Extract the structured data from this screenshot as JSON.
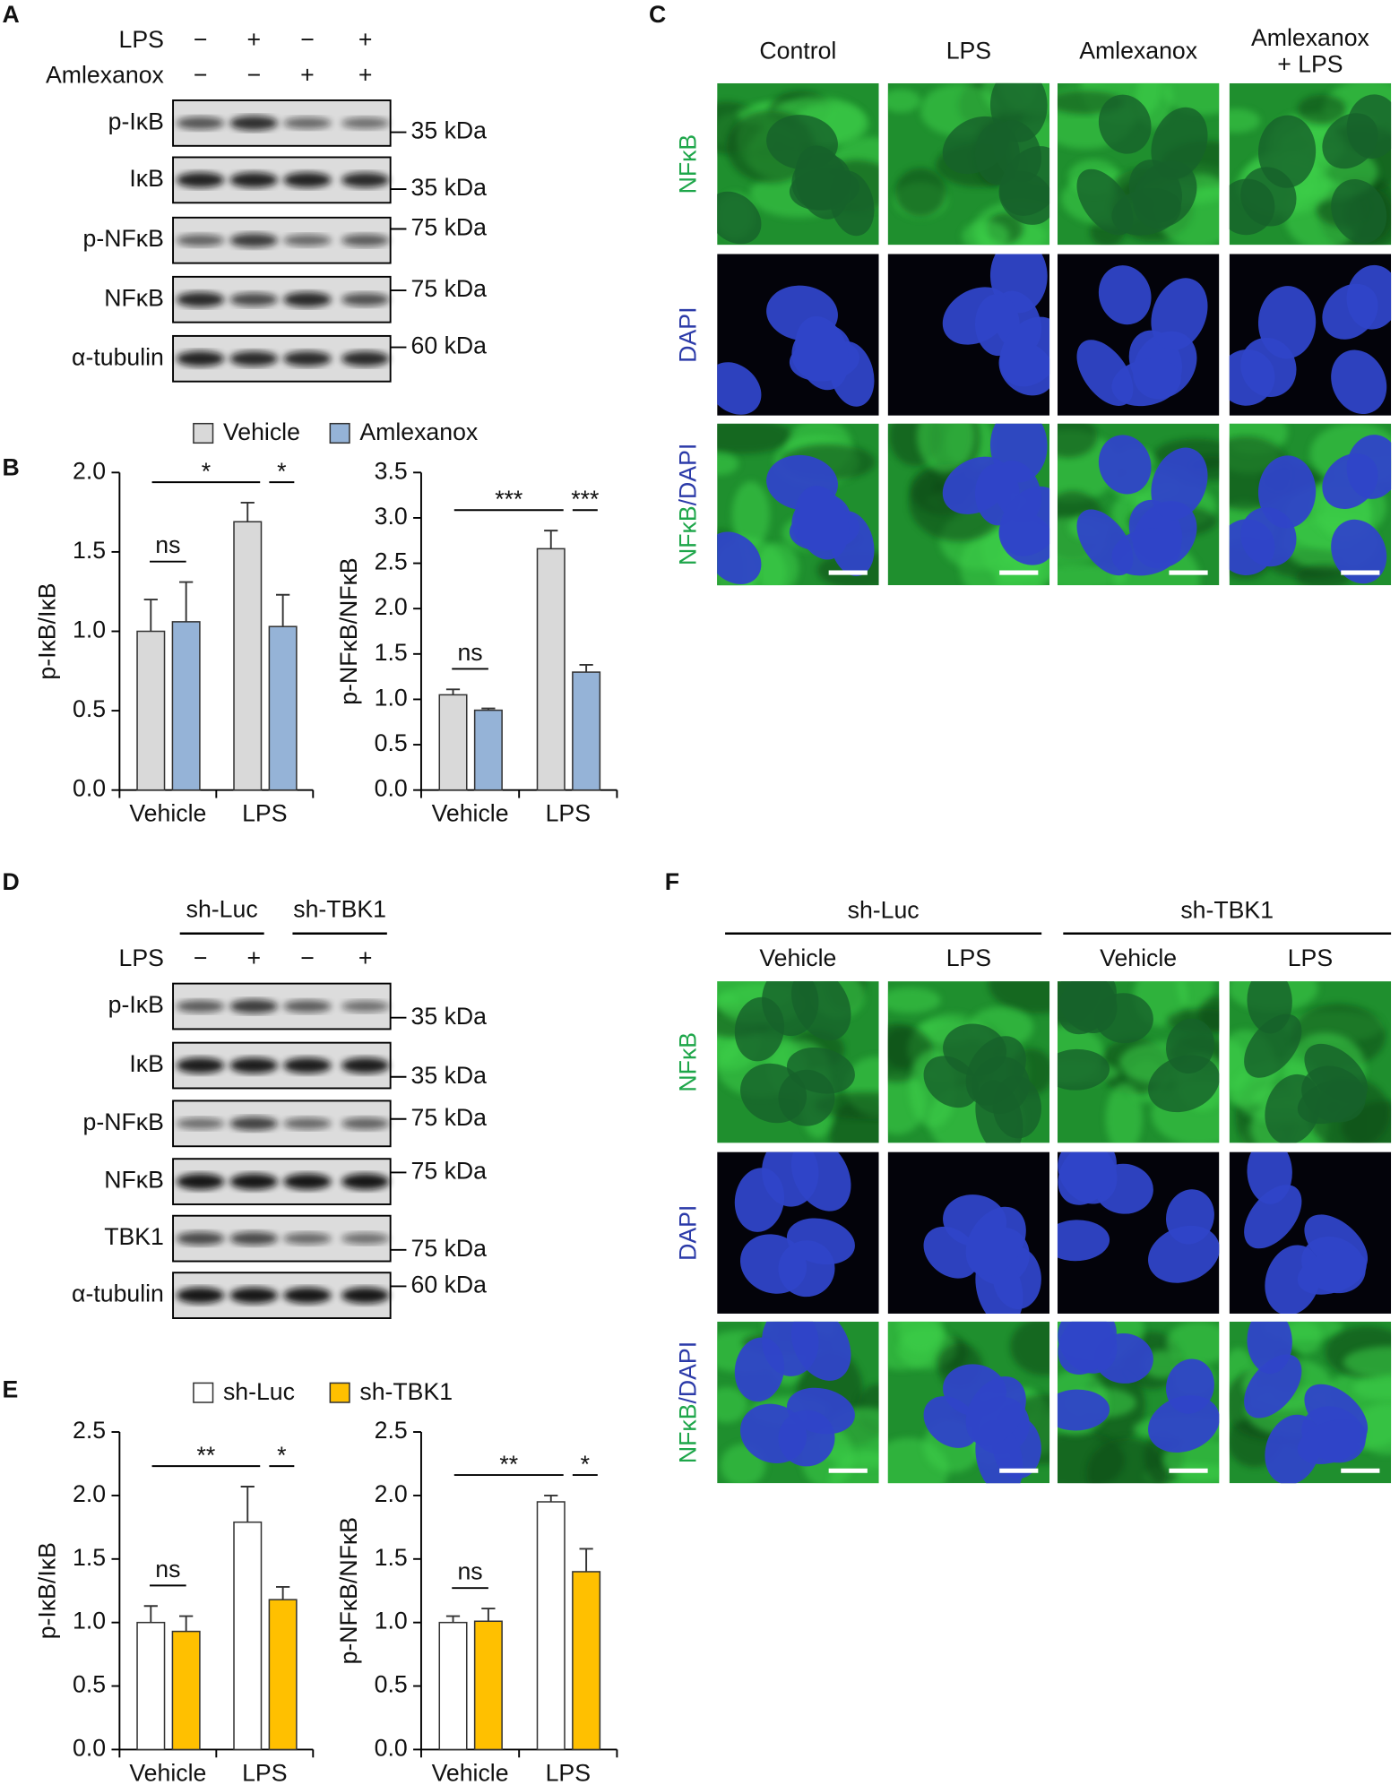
{
  "panel_letters": [
    "A",
    "B",
    "C",
    "D",
    "E",
    "F"
  ],
  "blot_a": {
    "conditions": [
      {
        "label": "LPS",
        "signs": [
          "−",
          "+",
          "−",
          "+"
        ]
      },
      {
        "label": "Amlexanox",
        "signs": [
          "−",
          "−",
          "+",
          "+"
        ]
      }
    ],
    "rows": [
      {
        "label": "p-IκB",
        "marker": "35 kDa"
      },
      {
        "label": "IκB",
        "marker": "35 kDa"
      },
      {
        "label": "p-NFκB",
        "marker": "75 kDa"
      },
      {
        "label": "NFκB",
        "marker": "75 kDa"
      },
      {
        "label": "α-tubulin",
        "marker": "60 kDa"
      }
    ]
  },
  "blot_d": {
    "groups": [
      "sh-Luc",
      "sh-TBK1"
    ],
    "conditions": [
      {
        "label": "LPS",
        "signs": [
          "−",
          "+",
          "−",
          "+"
        ]
      }
    ],
    "rows": [
      {
        "label": "p-IκB",
        "marker": "35 kDa"
      },
      {
        "label": "IκB",
        "marker": "35 kDa"
      },
      {
        "label": "p-NFκB",
        "marker": "75 kDa"
      },
      {
        "label": "NFκB",
        "marker": "75 kDa"
      },
      {
        "label": "TBK1",
        "marker": "75 kDa"
      },
      {
        "label": "α-tubulin",
        "marker": "60 kDa"
      }
    ]
  },
  "micro_c": {
    "columns": [
      [
        "Control"
      ],
      [
        "LPS"
      ],
      [
        "Amlexanox"
      ],
      [
        "Amlexanox",
        "+ LPS"
      ]
    ],
    "rows": [
      [
        "NFκB"
      ],
      [
        "DAPI"
      ],
      [
        "NFκB",
        "/DAPI"
      ]
    ]
  },
  "micro_f": {
    "groups": [
      "sh-Luc",
      "sh-TBK1"
    ],
    "columns": [
      [
        "Vehicle"
      ],
      [
        "LPS"
      ],
      [
        "Vehicle"
      ],
      [
        "LPS"
      ]
    ],
    "rows": [
      [
        "NFκB"
      ],
      [
        "DAPI"
      ],
      [
        "NFκB",
        "/DAPI"
      ]
    ]
  },
  "chart_data": [
    {
      "type": "bar",
      "ylabel": "p-IκB/IκB",
      "categories": [
        "Vehicle",
        "LPS"
      ],
      "series": [
        {
          "name": "Vehicle",
          "color": "#d9d9d9",
          "values": [
            1.0,
            1.69
          ],
          "errors": [
            0.2,
            0.12
          ]
        },
        {
          "name": "Amlexanox",
          "color": "#95b3d7",
          "values": [
            1.06,
            1.03
          ],
          "errors": [
            0.25,
            0.2
          ]
        }
      ],
      "ylim": [
        0,
        2
      ],
      "yticks": [
        {
          "value": 0,
          "label": "0.0"
        },
        0.5,
        {
          "value": 1,
          "label": "1.0"
        },
        1.5,
        {
          "value": 2,
          "label": "2.0"
        }
      ],
      "annotations": [
        "ns",
        "*",
        "*"
      ],
      "legend": "top"
    },
    {
      "type": "bar",
      "ylabel": "p-NFκB/NFκB",
      "categories": [
        "Vehicle",
        "LPS"
      ],
      "series": [
        {
          "color": "#d9d9d9",
          "values": [
            1.05,
            2.66
          ],
          "errors": [
            0.06,
            0.2
          ]
        },
        {
          "color": "#95b3d7",
          "values": [
            0.88,
            1.3
          ],
          "errors": [
            0.02,
            0.08
          ]
        }
      ],
      "ylim": [
        0,
        3.5
      ],
      "yticks": [
        {
          "value": 0,
          "label": "0.0"
        },
        0.5,
        {
          "value": 1,
          "label": "1.0"
        },
        1.5,
        {
          "value": 2,
          "label": "2.0"
        },
        2.5,
        {
          "value": 3,
          "label": "3.0"
        },
        3.5
      ],
      "annotations": [
        "ns",
        "***",
        "***"
      ]
    },
    {
      "type": "bar",
      "ylabel": "p-IκB/IκB",
      "categories": [
        "Vehicle",
        "LPS"
      ],
      "series": [
        {
          "name": "sh-Luc",
          "color": "#ffffff",
          "values": [
            1.0,
            1.79
          ],
          "errors": [
            0.13,
            0.28
          ]
        },
        {
          "name": "sh-TBK1",
          "color": "#ffc000",
          "values": [
            0.93,
            1.18
          ],
          "errors": [
            0.12,
            0.1
          ]
        }
      ],
      "ylim": [
        0,
        2.5
      ],
      "yticks": [
        {
          "value": 0,
          "label": "0.0"
        },
        0.5,
        {
          "value": 1,
          "label": "1.0"
        },
        1.5,
        {
          "value": 2,
          "label": "2.0"
        },
        2.5
      ],
      "annotations": [
        "ns",
        "**",
        "*"
      ],
      "legend": "top"
    },
    {
      "type": "bar",
      "ylabel": "p-NFκB/NFκB",
      "categories": [
        "Vehicle",
        "LPS"
      ],
      "series": [
        {
          "color": "#ffffff",
          "values": [
            1.0,
            1.95
          ],
          "errors": [
            0.05,
            0.05
          ]
        },
        {
          "color": "#ffc000",
          "values": [
            1.01,
            1.4
          ],
          "errors": [
            0.1,
            0.18
          ]
        }
      ],
      "ylim": [
        0,
        2.5
      ],
      "yticks": [
        {
          "value": 0,
          "label": "0.0"
        },
        0.5,
        {
          "value": 1,
          "label": "1.0"
        },
        1.5,
        {
          "value": 2,
          "label": "2.0"
        },
        2.5
      ],
      "annotations": [
        "ns",
        "**",
        "*"
      ]
    }
  ]
}
